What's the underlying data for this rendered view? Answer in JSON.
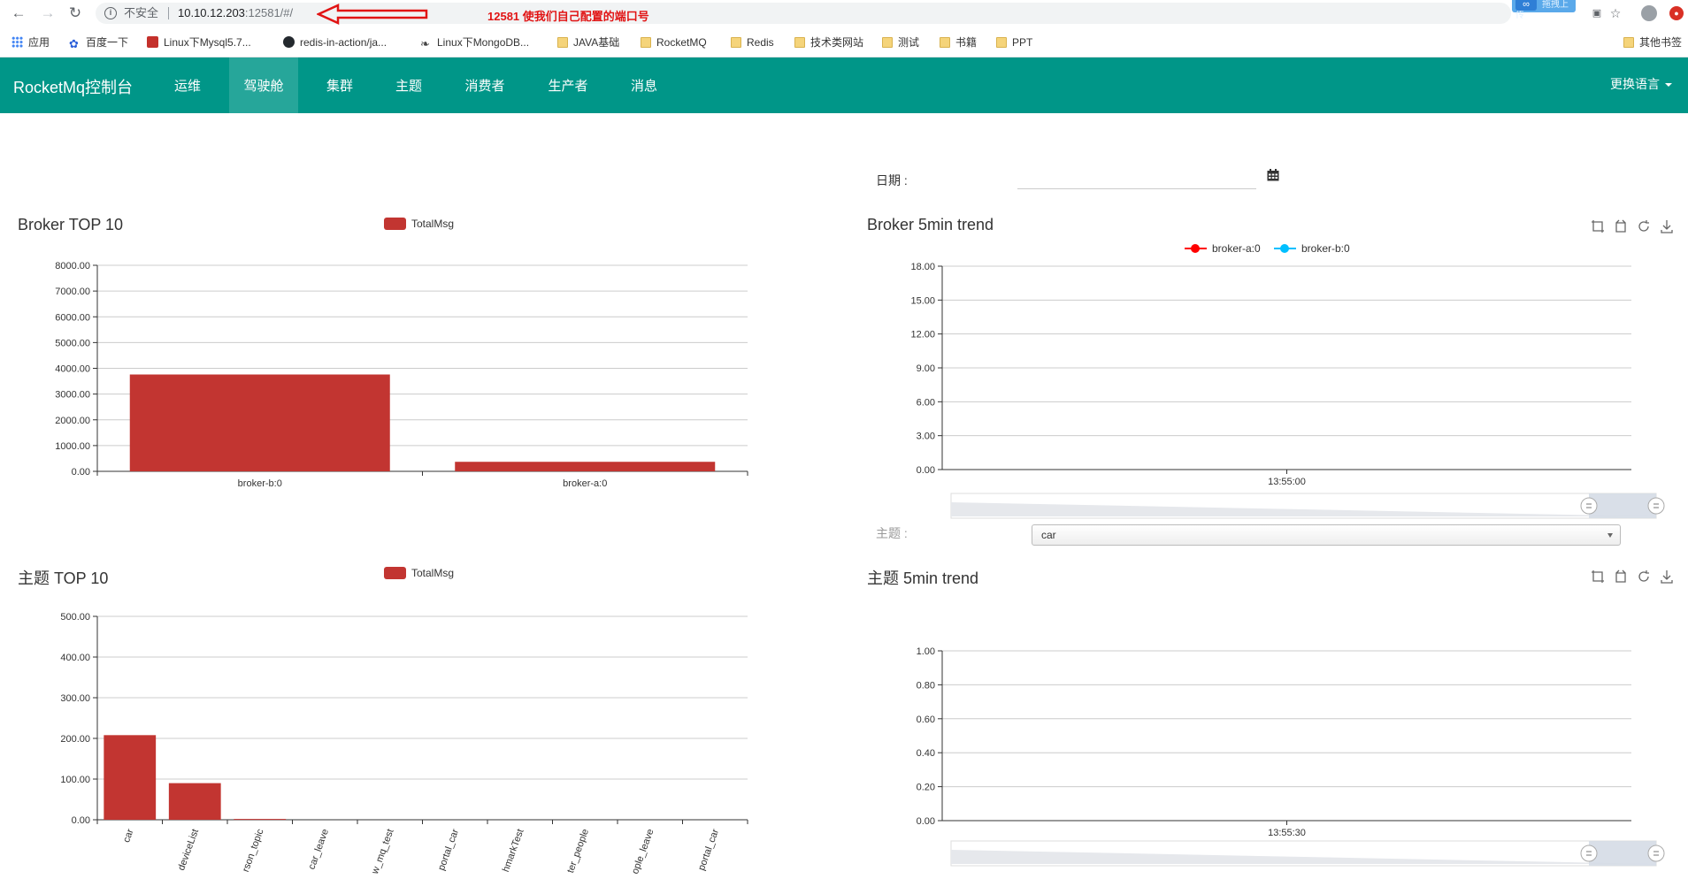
{
  "browser": {
    "nav": {
      "back_icon": "arrow-left-icon",
      "forward_icon": "arrow-right-icon",
      "reload_icon": "reload-icon"
    },
    "omnibox": {
      "security_text": "不安全",
      "url_host": "10.10.12.203",
      "url_rest": ":12581/#/"
    },
    "annotation_text": "12581 使我们自己配置的端口号",
    "upload_extension_label": "拖拽上传",
    "bookmarks": [
      {
        "label": "应用",
        "icon": "apps-grid-icon"
      },
      {
        "label": "百度一下",
        "icon": "baidu-paw-icon"
      },
      {
        "label": "Linux下Mysql5.7...",
        "icon": "site-icon"
      },
      {
        "label": "redis-in-action/ja...",
        "icon": "github-icon"
      },
      {
        "label": "Linux下MongoDB...",
        "icon": "mongodb-icon"
      },
      {
        "label": "JAVA基础",
        "icon": "folder-icon"
      },
      {
        "label": "RocketMQ",
        "icon": "folder-icon"
      },
      {
        "label": "Redis",
        "icon": "folder-icon"
      },
      {
        "label": "技术类网站",
        "icon": "folder-icon"
      },
      {
        "label": "测试",
        "icon": "folder-icon"
      },
      {
        "label": "书籍",
        "icon": "folder-icon"
      },
      {
        "label": "PPT",
        "icon": "folder-icon"
      }
    ],
    "other_bookmarks": "其他书签"
  },
  "navbar": {
    "brand": "RocketMq控制台",
    "items": [
      {
        "label": "运维",
        "active": false
      },
      {
        "label": "驾驶舱",
        "active": true
      },
      {
        "label": "集群",
        "active": false
      },
      {
        "label": "主题",
        "active": false
      },
      {
        "label": "消费者",
        "active": false
      },
      {
        "label": "生产者",
        "active": false
      },
      {
        "label": "消息",
        "active": false
      }
    ],
    "language": "更换语言"
  },
  "filters": {
    "date_label": "日期 :",
    "date_value": "",
    "topic_label": "主题 :",
    "topic_selected": "car"
  },
  "colors": {
    "navbar": "#009688",
    "navbar_active": "#26a69a",
    "bar": "#c23531",
    "broker_a": "#ff0000",
    "broker_b": "#00bfff"
  },
  "chart_data": [
    {
      "id": "broker-top10",
      "type": "bar",
      "title": "Broker TOP 10",
      "legend": [
        "TotalMsg"
      ],
      "categories": [
        "broker-b:0",
        "broker-a:0"
      ],
      "series": [
        {
          "name": "TotalMsg",
          "values": [
            3760,
            370
          ]
        }
      ],
      "ylim": [
        0,
        8000
      ],
      "yticks": [
        "0.00",
        "1000.00",
        "2000.00",
        "3000.00",
        "4000.00",
        "5000.00",
        "6000.00",
        "7000.00",
        "8000.00"
      ],
      "grid": true
    },
    {
      "id": "broker-5min-trend",
      "type": "line",
      "title": "Broker 5min trend",
      "legend": [
        "broker-a:0",
        "broker-b:0"
      ],
      "x_labels": [
        "13:55:00"
      ],
      "series": [
        {
          "name": "broker-a:0",
          "values": []
        },
        {
          "name": "broker-b:0",
          "values": []
        }
      ],
      "ylim": [
        0,
        18
      ],
      "yticks": [
        "0.00",
        "3.00",
        "6.00",
        "9.00",
        "12.00",
        "15.00",
        "18.00"
      ],
      "grid": true,
      "toolbox": [
        "zoom-icon",
        "zoom-reset-icon",
        "restore-icon",
        "save-image-icon"
      ]
    },
    {
      "id": "topic-top10",
      "type": "bar",
      "title": "主题 TOP 10",
      "legend": [
        "TotalMsg"
      ],
      "categories": [
        "car",
        "deviceList",
        "rson_topic",
        "car_leave",
        "w_mq_test",
        "portal_car",
        "hmarkTest",
        "ter_people",
        "ople_leave",
        "portal_car"
      ],
      "series": [
        {
          "name": "TotalMsg",
          "values": [
            208,
            90,
            2,
            0,
            0,
            0,
            0,
            0,
            0,
            0
          ]
        }
      ],
      "ylim": [
        0,
        500
      ],
      "yticks": [
        "0.00",
        "100.00",
        "200.00",
        "300.00",
        "400.00",
        "500.00"
      ],
      "grid": true
    },
    {
      "id": "topic-5min-trend",
      "type": "line",
      "title": "主题 5min trend",
      "legend": [],
      "x_labels": [
        "13:55:30"
      ],
      "series": [],
      "ylim": [
        0,
        1
      ],
      "yticks": [
        "0.00",
        "0.20",
        "0.40",
        "0.60",
        "0.80",
        "1.00"
      ],
      "grid": true,
      "toolbox": [
        "zoom-icon",
        "zoom-reset-icon",
        "restore-icon",
        "save-image-icon"
      ]
    }
  ]
}
